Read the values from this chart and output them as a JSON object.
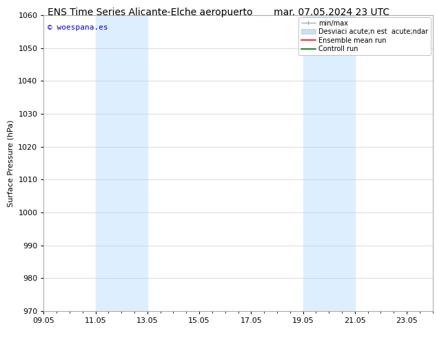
{
  "title_left": "ENS Time Series Alicante-Elche aeropuerto",
  "title_right": "mar. 07.05.2024 23 UTC",
  "ylabel": "Surface Pressure (hPa)",
  "ylim": [
    970,
    1060
  ],
  "yticks": [
    970,
    980,
    990,
    1000,
    1010,
    1020,
    1030,
    1040,
    1050,
    1060
  ],
  "xtick_labels": [
    "09.05",
    "11.05",
    "13.05",
    "15.05",
    "17.05",
    "19.05",
    "21.05",
    "23.05"
  ],
  "xtick_positions": [
    0,
    2,
    4,
    6,
    8,
    10,
    12,
    14
  ],
  "xlim": [
    0,
    15
  ],
  "shade_bands": [
    {
      "x_start": 2,
      "x_end": 4
    },
    {
      "x_start": 10,
      "x_end": 12
    }
  ],
  "shade_color": "#ddeeff",
  "watermark_text": "© woespana.es",
  "watermark_color": "#0000cc",
  "bg_color": "#ffffff",
  "grid_color": "#cccccc",
  "title_fontsize": 10,
  "ylabel_fontsize": 8,
  "tick_fontsize": 8,
  "legend_fontsize": 7,
  "spine_color": "#aaaaaa",
  "minmax_color": "#aaaaaa",
  "desv_color": "#cce0f0",
  "desv_edge_color": "#aaccdd",
  "ensemble_color": "#ff0000",
  "control_color": "#006600"
}
